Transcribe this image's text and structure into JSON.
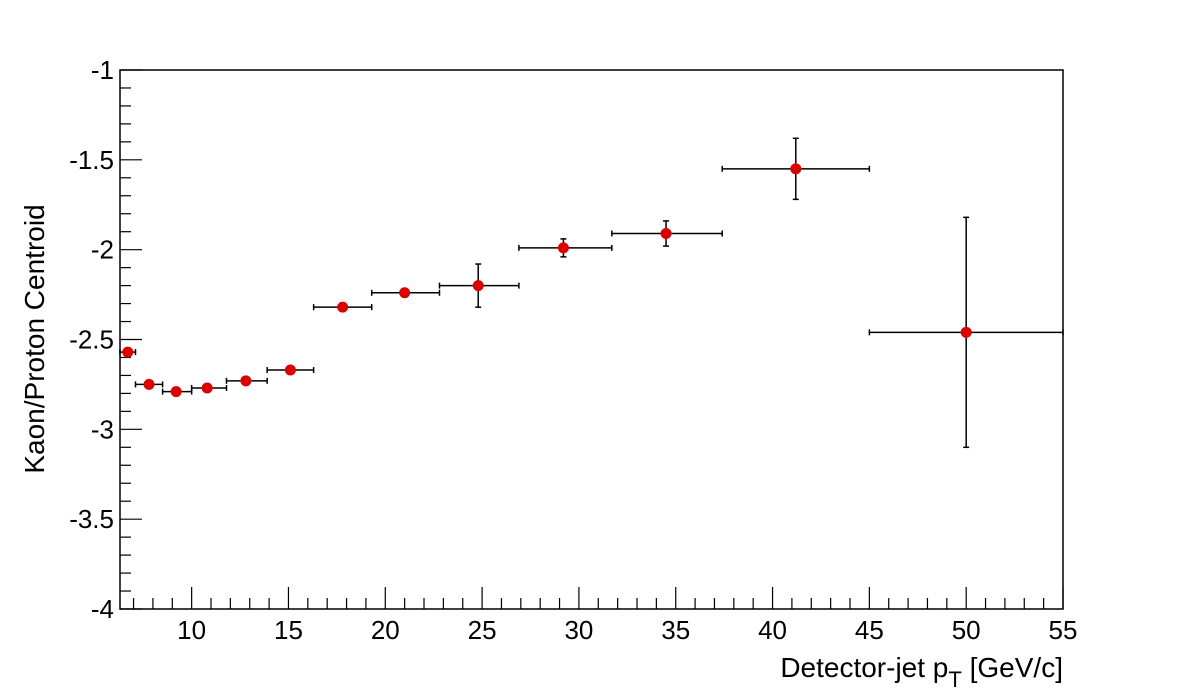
{
  "chart_data": {
    "type": "scatter",
    "title": "",
    "xlabel": "Detector-jet p",
    "xlabel_subscript": "T",
    "xlabel_unit": " [GeV/c]",
    "ylabel": "Kaon/Proton Centroid",
    "xlim": [
      6.3,
      55
    ],
    "ylim": [
      -4,
      -1
    ],
    "x_ticks": [
      10,
      15,
      20,
      25,
      30,
      35,
      40,
      45,
      50,
      55
    ],
    "y_ticks": [
      -4,
      -3.5,
      -3,
      -2.5,
      -2,
      -1.5,
      -1
    ],
    "grid": false,
    "marker_color": "#dd0000",
    "points": [
      {
        "x": 6.7,
        "y": -2.57,
        "xlow": 6.3,
        "xhigh": 7.1,
        "yerr": 0.0
      },
      {
        "x": 7.8,
        "y": -2.75,
        "xlow": 7.1,
        "xhigh": 8.5,
        "yerr": 0.0
      },
      {
        "x": 9.2,
        "y": -2.79,
        "xlow": 8.5,
        "xhigh": 10.0,
        "yerr": 0.0
      },
      {
        "x": 10.8,
        "y": -2.77,
        "xlow": 10.0,
        "xhigh": 11.8,
        "yerr": 0.0
      },
      {
        "x": 12.8,
        "y": -2.73,
        "xlow": 11.8,
        "xhigh": 13.9,
        "yerr": 0.0
      },
      {
        "x": 15.1,
        "y": -2.67,
        "xlow": 13.9,
        "xhigh": 16.3,
        "yerr": 0.0
      },
      {
        "x": 17.8,
        "y": -2.32,
        "xlow": 16.3,
        "xhigh": 19.3,
        "yerr": 0.0
      },
      {
        "x": 21.0,
        "y": -2.24,
        "xlow": 19.3,
        "xhigh": 22.8,
        "yerr": 0.0
      },
      {
        "x": 24.8,
        "y": -2.2,
        "xlow": 22.8,
        "xhigh": 26.9,
        "yerr": 0.12
      },
      {
        "x": 29.2,
        "y": -1.99,
        "xlow": 26.9,
        "xhigh": 31.7,
        "yerr": 0.05
      },
      {
        "x": 34.5,
        "y": -1.91,
        "xlow": 31.7,
        "xhigh": 37.4,
        "yerr": 0.07
      },
      {
        "x": 41.2,
        "y": -1.55,
        "xlow": 37.4,
        "xhigh": 45.0,
        "yerr": 0.17
      },
      {
        "x": 50.0,
        "y": -2.46,
        "xlow": 45.0,
        "xhigh": 55.0,
        "yerr": 0.64
      }
    ]
  }
}
